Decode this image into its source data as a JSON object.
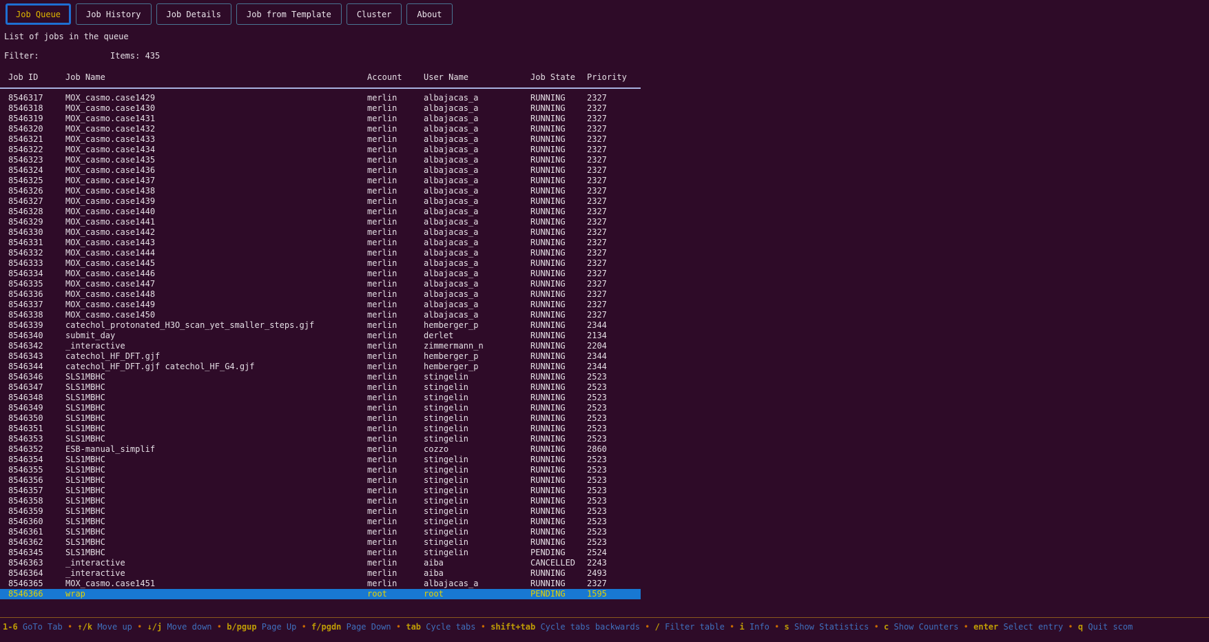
{
  "tabs": [
    {
      "label": "Job Queue",
      "active": true
    },
    {
      "label": "Job History",
      "active": false
    },
    {
      "label": "Job Details",
      "active": false
    },
    {
      "label": "Job from Template",
      "active": false
    },
    {
      "label": "Cluster",
      "active": false
    },
    {
      "label": "About",
      "active": false
    }
  ],
  "subtitle": "List of jobs in the queue",
  "filter": {
    "label": "Filter:",
    "value": "",
    "items_text": "Items: 435"
  },
  "table": {
    "columns": [
      "Job ID",
      "Job Name",
      "Account",
      "User Name",
      "Job State",
      "Priority"
    ],
    "selected_index": 48,
    "rows": [
      [
        "8546317",
        "MOX_casmo.case1429",
        "merlin",
        "albajacas_a",
        "RUNNING",
        "2327"
      ],
      [
        "8546318",
        "MOX_casmo.case1430",
        "merlin",
        "albajacas_a",
        "RUNNING",
        "2327"
      ],
      [
        "8546319",
        "MOX_casmo.case1431",
        "merlin",
        "albajacas_a",
        "RUNNING",
        "2327"
      ],
      [
        "8546320",
        "MOX_casmo.case1432",
        "merlin",
        "albajacas_a",
        "RUNNING",
        "2327"
      ],
      [
        "8546321",
        "MOX_casmo.case1433",
        "merlin",
        "albajacas_a",
        "RUNNING",
        "2327"
      ],
      [
        "8546322",
        "MOX_casmo.case1434",
        "merlin",
        "albajacas_a",
        "RUNNING",
        "2327"
      ],
      [
        "8546323",
        "MOX_casmo.case1435",
        "merlin",
        "albajacas_a",
        "RUNNING",
        "2327"
      ],
      [
        "8546324",
        "MOX_casmo.case1436",
        "merlin",
        "albajacas_a",
        "RUNNING",
        "2327"
      ],
      [
        "8546325",
        "MOX_casmo.case1437",
        "merlin",
        "albajacas_a",
        "RUNNING",
        "2327"
      ],
      [
        "8546326",
        "MOX_casmo.case1438",
        "merlin",
        "albajacas_a",
        "RUNNING",
        "2327"
      ],
      [
        "8546327",
        "MOX_casmo.case1439",
        "merlin",
        "albajacas_a",
        "RUNNING",
        "2327"
      ],
      [
        "8546328",
        "MOX_casmo.case1440",
        "merlin",
        "albajacas_a",
        "RUNNING",
        "2327"
      ],
      [
        "8546329",
        "MOX_casmo.case1441",
        "merlin",
        "albajacas_a",
        "RUNNING",
        "2327"
      ],
      [
        "8546330",
        "MOX_casmo.case1442",
        "merlin",
        "albajacas_a",
        "RUNNING",
        "2327"
      ],
      [
        "8546331",
        "MOX_casmo.case1443",
        "merlin",
        "albajacas_a",
        "RUNNING",
        "2327"
      ],
      [
        "8546332",
        "MOX_casmo.case1444",
        "merlin",
        "albajacas_a",
        "RUNNING",
        "2327"
      ],
      [
        "8546333",
        "MOX_casmo.case1445",
        "merlin",
        "albajacas_a",
        "RUNNING",
        "2327"
      ],
      [
        "8546334",
        "MOX_casmo.case1446",
        "merlin",
        "albajacas_a",
        "RUNNING",
        "2327"
      ],
      [
        "8546335",
        "MOX_casmo.case1447",
        "merlin",
        "albajacas_a",
        "RUNNING",
        "2327"
      ],
      [
        "8546336",
        "MOX_casmo.case1448",
        "merlin",
        "albajacas_a",
        "RUNNING",
        "2327"
      ],
      [
        "8546337",
        "MOX_casmo.case1449",
        "merlin",
        "albajacas_a",
        "RUNNING",
        "2327"
      ],
      [
        "8546338",
        "MOX_casmo.case1450",
        "merlin",
        "albajacas_a",
        "RUNNING",
        "2327"
      ],
      [
        "8546339",
        "catechol_protonated_H3O_scan_yet_smaller_steps.gjf",
        "merlin",
        "hemberger_p",
        "RUNNING",
        "2344"
      ],
      [
        "8546340",
        "submit_day",
        "merlin",
        "derlet",
        "RUNNING",
        "2134"
      ],
      [
        "8546342",
        "_interactive",
        "merlin",
        "zimmermann_n",
        "RUNNING",
        "2204"
      ],
      [
        "8546343",
        "catechol_HF_DFT.gjf",
        "merlin",
        "hemberger_p",
        "RUNNING",
        "2344"
      ],
      [
        "8546344",
        "catechol_HF_DFT.gjf catechol_HF_G4.gjf",
        "merlin",
        "hemberger_p",
        "RUNNING",
        "2344"
      ],
      [
        "8546346",
        "SLS1MBHC",
        "merlin",
        "stingelin",
        "RUNNING",
        "2523"
      ],
      [
        "8546347",
        "SLS1MBHC",
        "merlin",
        "stingelin",
        "RUNNING",
        "2523"
      ],
      [
        "8546348",
        "SLS1MBHC",
        "merlin",
        "stingelin",
        "RUNNING",
        "2523"
      ],
      [
        "8546349",
        "SLS1MBHC",
        "merlin",
        "stingelin",
        "RUNNING",
        "2523"
      ],
      [
        "8546350",
        "SLS1MBHC",
        "merlin",
        "stingelin",
        "RUNNING",
        "2523"
      ],
      [
        "8546351",
        "SLS1MBHC",
        "merlin",
        "stingelin",
        "RUNNING",
        "2523"
      ],
      [
        "8546353",
        "SLS1MBHC",
        "merlin",
        "stingelin",
        "RUNNING",
        "2523"
      ],
      [
        "8546352",
        "ESB-manual_simplif",
        "merlin",
        "cozzo",
        "RUNNING",
        "2860"
      ],
      [
        "8546354",
        "SLS1MBHC",
        "merlin",
        "stingelin",
        "RUNNING",
        "2523"
      ],
      [
        "8546355",
        "SLS1MBHC",
        "merlin",
        "stingelin",
        "RUNNING",
        "2523"
      ],
      [
        "8546356",
        "SLS1MBHC",
        "merlin",
        "stingelin",
        "RUNNING",
        "2523"
      ],
      [
        "8546357",
        "SLS1MBHC",
        "merlin",
        "stingelin",
        "RUNNING",
        "2523"
      ],
      [
        "8546358",
        "SLS1MBHC",
        "merlin",
        "stingelin",
        "RUNNING",
        "2523"
      ],
      [
        "8546359",
        "SLS1MBHC",
        "merlin",
        "stingelin",
        "RUNNING",
        "2523"
      ],
      [
        "8546360",
        "SLS1MBHC",
        "merlin",
        "stingelin",
        "RUNNING",
        "2523"
      ],
      [
        "8546361",
        "SLS1MBHC",
        "merlin",
        "stingelin",
        "RUNNING",
        "2523"
      ],
      [
        "8546362",
        "SLS1MBHC",
        "merlin",
        "stingelin",
        "RUNNING",
        "2523"
      ],
      [
        "8546345",
        "SLS1MBHC",
        "merlin",
        "stingelin",
        "PENDING",
        "2524"
      ],
      [
        "8546363",
        "_interactive",
        "merlin",
        "aiba",
        "CANCELLED",
        "2243"
      ],
      [
        "8546364",
        "_interactive",
        "merlin",
        "aiba",
        "RUNNING",
        "2493"
      ],
      [
        "8546365",
        "MOX_casmo.case1451",
        "merlin",
        "albajacas_a",
        "RUNNING",
        "2327"
      ],
      [
        "8546366",
        "wrap",
        "root",
        "root",
        "PENDING",
        "1595"
      ]
    ]
  },
  "keybar": {
    "separator": "•",
    "bindings": [
      {
        "key": "1-6",
        "label": "GoTo Tab"
      },
      {
        "key": "↑/k",
        "label": "Move up"
      },
      {
        "key": "↓/j",
        "label": "Move down"
      },
      {
        "key": "b/pgup",
        "label": "Page Up"
      },
      {
        "key": "f/pgdn",
        "label": "Page Down"
      },
      {
        "key": "tab",
        "label": "Cycle tabs"
      },
      {
        "key": "shift+tab",
        "label": "Cycle tabs backwards"
      },
      {
        "key": "/",
        "label": "Filter table"
      },
      {
        "key": "i",
        "label": "Info"
      },
      {
        "key": "s",
        "label": "Show Statistics"
      },
      {
        "key": "c",
        "label": "Show Counters"
      },
      {
        "key": "enter",
        "label": "Select entry"
      },
      {
        "key": "q",
        "label": "Quit scom"
      }
    ]
  },
  "colors": {
    "background": "#2e0b28",
    "tab_active_border": "#1e6fd2",
    "tab_active_text": "#dfb600",
    "tab_inactive_border": "#4a7694",
    "text": "#e4dee4",
    "header_separator": "#a9b2e0",
    "selected_row_bg": "#1878d2",
    "selected_row_text": "#e5d200",
    "key_hint": "#bf9c05",
    "key_label": "#3f6fbc",
    "bullet": "#c96a00",
    "footer_rule": "#8a5a1e"
  }
}
